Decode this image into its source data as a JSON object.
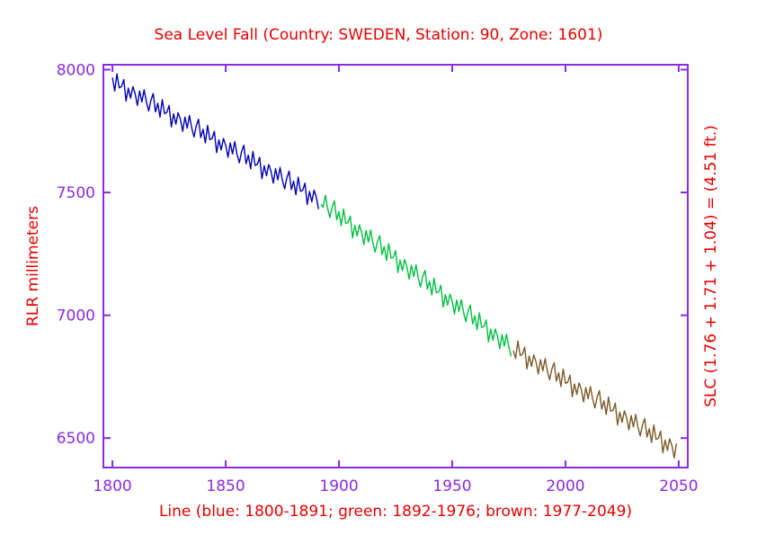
{
  "colors": {
    "background": "#ffffff",
    "axis": "#8a2be2",
    "tick_label": "#8a2be2",
    "label": "#e60000",
    "series_blue": "#0000b3",
    "series_green": "#00c040",
    "series_brown": "#7a5a28"
  },
  "chart_data": {
    "type": "line",
    "title": "Sea Level Fall (Country: SWEDEN, Station: 90, Zone: 1601)",
    "xlabel": "Line (blue: 1800-1891; green: 1892-1976; brown: 1977-2049)",
    "ylabel_left": "RLR millimeters",
    "ylabel_right": "SLC (1.76 + 1.71 + 1.04) = (4.51 ft.)",
    "xlim": [
      1796,
      2054
    ],
    "ylim": [
      6380,
      8020
    ],
    "xticks": [
      1800,
      1850,
      1900,
      1950,
      2000,
      2050
    ],
    "yticks": [
      6500,
      7000,
      7500,
      8000
    ],
    "grid": false,
    "legend": "none (segment colors described in xlabel)",
    "series": [
      {
        "name": "blue: 1800-1891",
        "color_key": "series_blue",
        "x_start": 1800,
        "x_step": 1,
        "values": [
          7968,
          7913,
          7983,
          7926,
          7931,
          7960,
          7872,
          7925,
          7884,
          7931,
          7903,
          7854,
          7913,
          7868,
          7918,
          7867,
          7832,
          7876,
          7903,
          7828,
          7863,
          7807,
          7878,
          7821,
          7826,
          7854,
          7767,
          7820,
          7778,
          7825,
          7798,
          7749,
          7807,
          7762,
          7813,
          7762,
          7726,
          7771,
          7798,
          7723,
          7757,
          7702,
          7773,
          7715,
          7720,
          7749,
          7662,
          7714,
          7673,
          7720,
          7693,
          7643,
          7702,
          7657,
          7707,
          7656,
          7621,
          7666,
          7692,
          7617,
          7652,
          7597,
          7667,
          7610,
          7615,
          7643,
          7556,
          7609,
          7568,
          7614,
          7587,
          7538,
          7597,
          7551,
          7602,
          7551,
          7515,
          7560,
          7587,
          7512,
          7546,
          7491,
          7562,
          7505,
          7509,
          7538,
          7451,
          7504,
          7462,
          7509,
          7482,
          7432
        ]
      },
      {
        "name": "green: 1892-1976",
        "color_key": "series_green",
        "x_start": 1892,
        "x_step": 1,
        "values": [
          7452,
          7439,
          7488,
          7435,
          7398,
          7441,
          7466,
          7389,
          7422,
          7364,
          7433,
          7374,
          7377,
          7404,
          7315,
          7366,
          7323,
          7368,
          7339,
          7288,
          7345,
          7298,
          7347,
          7294,
          7257,
          7300,
          7324,
          7247,
          7280,
          7223,
          7292,
          7233,
          7236,
          7263,
          7174,
          7225,
          7182,
          7227,
          7198,
          7147,
          7204,
          7157,
          7206,
          7152,
          7115,
          7158,
          7183,
          7106,
          7139,
          7082,
          7151,
          7092,
          7095,
          7122,
          7033,
          7084,
          7041,
          7086,
          7057,
          7006,
          7062,
          7015,
          7064,
          7011,
          6974,
          7017,
          7042,
          6965,
          6998,
          6941,
          7010,
          6951,
          6954,
          6981,
          6892,
          6943,
          6899,
          6944,
          6915,
          6864,
          6921,
          6874,
          6923,
          6870,
          6833
        ]
      },
      {
        "name": "brown: 1977-2049",
        "color_key": "series_brown",
        "x_start": 1977,
        "x_step": 1,
        "values": [
          6856,
          6824,
          6895,
          6837,
          6841,
          6870,
          6782,
          6834,
          6792,
          6839,
          6811,
          6761,
          6820,
          6774,
          6824,
          6773,
          6737,
          6781,
          6807,
          6732,
          6766,
          6710,
          6781,
          6723,
          6727,
          6756,
          6668,
          6720,
          6678,
          6725,
          6697,
          6647,
          6706,
          6660,
          6710,
          6659,
          6623,
          6667,
          6693,
          6618,
          6652,
          6596,
          6667,
          6609,
          6613,
          6642,
          6554,
          6606,
          6564,
          6611,
          6583,
          6533,
          6592,
          6546,
          6596,
          6545,
          6509,
          6553,
          6579,
          6504,
          6538,
          6482,
          6553,
          6495,
          6499,
          6528,
          6440,
          6492,
          6450,
          6497,
          6469,
          6419,
          6478
        ]
      }
    ]
  }
}
